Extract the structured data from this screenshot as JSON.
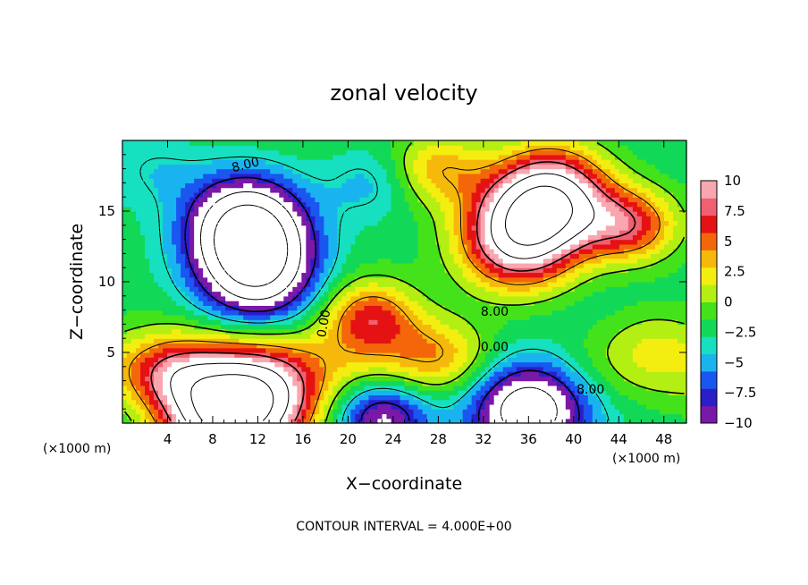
{
  "chart_data": {
    "type": "heatmap",
    "title": "zonal velocity",
    "xlabel": "X−coordinate",
    "ylabel": "Z−coordinate",
    "x_units": "(×1000 m)",
    "x_units_right": "(×1000 m)",
    "xlim": [
      0,
      50
    ],
    "ylim": [
      0,
      20
    ],
    "x_ticks": [
      4,
      8,
      12,
      16,
      20,
      24,
      28,
      32,
      36,
      40,
      44,
      48
    ],
    "x_tick_labels": [
      "4",
      "8",
      "12",
      "16",
      "20",
      "24",
      "28",
      "32",
      "36",
      "40",
      "44",
      "48"
    ],
    "y_ticks": [
      5,
      10,
      15
    ],
    "y_tick_labels": [
      "5",
      "10",
      "15"
    ],
    "colorbar": {
      "min": -10,
      "max": 10,
      "ticks": [
        10,
        7.5,
        5,
        2.5,
        0,
        -2.5,
        -5,
        -7.5,
        -10
      ],
      "tick_labels": [
        "10",
        "7.5",
        "5",
        "2.5",
        "0",
        "−2.5",
        "−5",
        "−7.5",
        "−10"
      ],
      "colors": [
        "#7a18a8",
        "#2a1ec8",
        "#1a56f0",
        "#19b4f0",
        "#16e0c0",
        "#12d858",
        "#44e21a",
        "#b4ef14",
        "#f4ee10",
        "#f6b80a",
        "#f4660a",
        "#e41212",
        "#f06070",
        "#f8a6b0"
      ]
    },
    "contour_interval_label": "CONTOUR INTERVAL = 4.000E+00",
    "contour_labels": [
      "8.00",
      "0.00",
      "8.00",
      "0.00",
      "8.00"
    ],
    "features": [
      {
        "x": 11.0,
        "z": 14.0,
        "value": -15
      },
      {
        "x": 12.0,
        "z": 10.5,
        "value": -12
      },
      {
        "x": 35.0,
        "z": 13.0,
        "value": 14
      },
      {
        "x": 38.0,
        "z": 16.0,
        "value": 16
      },
      {
        "x": 45.0,
        "z": 14.0,
        "value": 9
      },
      {
        "x": 12.0,
        "z": 1.6,
        "value": 13
      },
      {
        "x": 8.0,
        "z": 0.3,
        "value": 12
      },
      {
        "x": 4.5,
        "z": 3.4,
        "value": 6
      },
      {
        "x": 22.0,
        "z": 7.5,
        "value": 8
      },
      {
        "x": 36.0,
        "z": 1.3,
        "value": -13
      },
      {
        "x": 23.0,
        "z": 0.5,
        "value": -9
      },
      {
        "x": 1.0,
        "z": 0.5,
        "value": -1
      },
      {
        "x": 22.0,
        "z": 17.0,
        "value": -3
      },
      {
        "x": 28.0,
        "z": 18.0,
        "value": 6
      },
      {
        "x": 28.0,
        "z": 5.0,
        "value": 4
      },
      {
        "x": 3.0,
        "z": 18.0,
        "value": -2
      },
      {
        "x": 47.0,
        "z": 6.0,
        "value": 2
      }
    ]
  }
}
